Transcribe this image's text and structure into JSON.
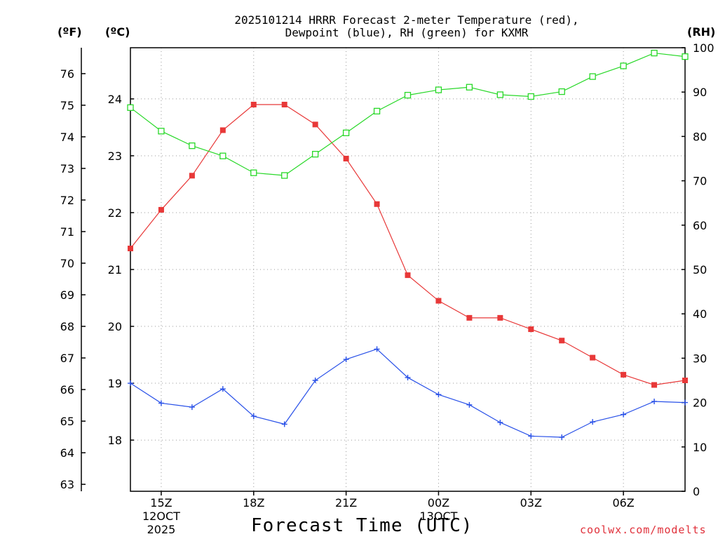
{
  "title": {
    "line1": "2025101214 HRRR Forecast 2-meter Temperature (red),",
    "line2": "Dewpoint (blue), RH (green) for KXMR"
  },
  "units": {
    "fahrenheit": "(ºF)",
    "celsius": "(ºC)",
    "rh": "(RH)"
  },
  "xlabel": "Forecast Time (UTC)",
  "credit": "coolwx.com/modelts",
  "colors": {
    "temperature": "#e83838",
    "dewpoint": "#2850e8",
    "rh": "#28d828",
    "axis": "#000000",
    "grid": "#999999"
  },
  "chart_data": {
    "type": "line",
    "x_hours": [
      14,
      15,
      16,
      17,
      18,
      19,
      20,
      21,
      22,
      23,
      24,
      25,
      26,
      27,
      28,
      29,
      30,
      31,
      32
    ],
    "x_range": [
      14,
      32
    ],
    "series": [
      {
        "name": "Temperature (°C)",
        "axis": "celsius",
        "marker": "filled-square",
        "values": [
          21.37,
          22.05,
          22.65,
          23.45,
          23.9,
          23.9,
          23.55,
          22.95,
          22.15,
          20.9,
          20.45,
          20.15,
          20.15,
          19.95,
          19.75,
          19.45,
          19.15,
          18.97,
          19.05
        ]
      },
      {
        "name": "Dewpoint (°C)",
        "axis": "celsius",
        "marker": "plus",
        "values": [
          19.0,
          18.65,
          18.58,
          18.9,
          18.42,
          18.28,
          19.05,
          19.42,
          19.6,
          19.1,
          18.8,
          18.62,
          18.31,
          18.07,
          18.05,
          18.32,
          18.45,
          18.68,
          18.66
        ]
      },
      {
        "name": "RH (%)",
        "axis": "rh",
        "marker": "open-square",
        "values": [
          86.5,
          81.2,
          77.9,
          75.6,
          71.8,
          71.2,
          76.0,
          80.8,
          85.7,
          89.3,
          90.5,
          91.1,
          89.4,
          89.0,
          90.1,
          93.5,
          95.9,
          98.8,
          98.0
        ]
      }
    ],
    "celsius_axis": {
      "range": [
        17.1,
        24.9
      ],
      "ticks": [
        18,
        19,
        20,
        21,
        22,
        23,
        24
      ]
    },
    "fahrenheit_axis": {
      "ticks": [
        63,
        64,
        65,
        66,
        67,
        68,
        69,
        70,
        71,
        72,
        73,
        74,
        75,
        76
      ]
    },
    "rh_axis": {
      "range": [
        0,
        100
      ],
      "ticks": [
        0,
        10,
        20,
        30,
        40,
        50,
        60,
        70,
        80,
        90,
        100
      ]
    },
    "x_ticks": [
      {
        "hour": 15,
        "label": "15Z",
        "date": "12OCT",
        "year": "2025"
      },
      {
        "hour": 18,
        "label": "18Z"
      },
      {
        "hour": 21,
        "label": "21Z"
      },
      {
        "hour": 24,
        "label": "00Z",
        "date": "13OCT"
      },
      {
        "hour": 27,
        "label": "03Z"
      },
      {
        "hour": 30,
        "label": "06Z"
      }
    ],
    "grid": "dotted"
  }
}
